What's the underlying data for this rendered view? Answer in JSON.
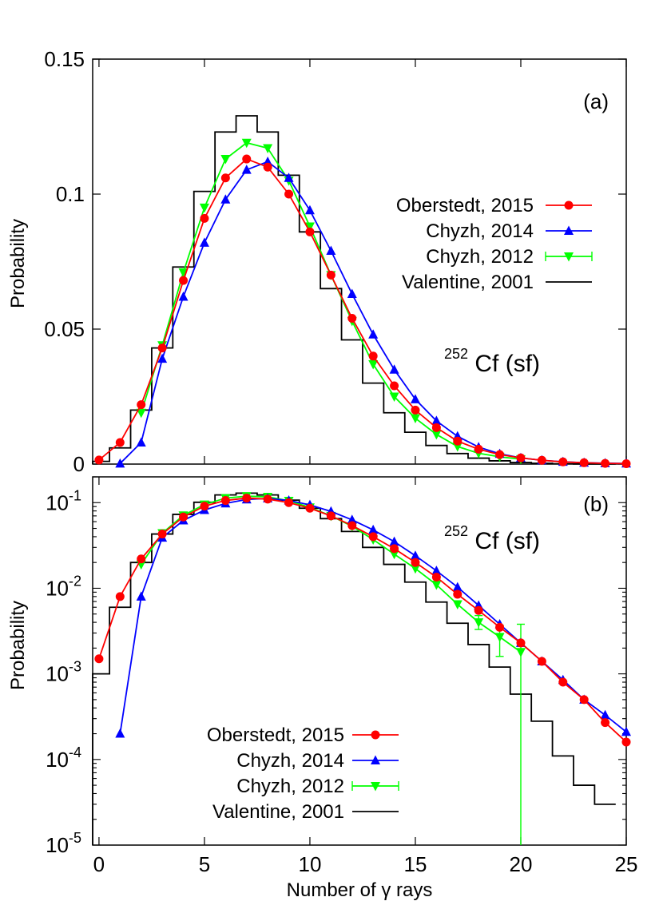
{
  "chart_data": [
    {
      "type": "line",
      "panel_label": "(a)",
      "annotation": {
        "isotope_mass": "252",
        "isotope_rest": "Cf (sf)"
      },
      "xlabel": "Number of γ rays",
      "ylabel": "Probability",
      "xlim": [
        -0.3,
        25
      ],
      "ylim": [
        0,
        0.15
      ],
      "yscale": "linear",
      "xticks": [
        0,
        5,
        10,
        15,
        20,
        25
      ],
      "yticks": [
        0,
        0.05,
        0.1,
        0.15
      ],
      "ytick_labels": [
        "0",
        "0.05",
        "0.1",
        "0.15"
      ],
      "legend_position": "right",
      "series": [
        {
          "name": "Oberstedt, 2015",
          "color": "#ff0000",
          "marker": "circle",
          "x": [
            0,
            1,
            2,
            3,
            4,
            5,
            6,
            7,
            8,
            9,
            10,
            11,
            12,
            13,
            14,
            15,
            16,
            17,
            18,
            19,
            20,
            21,
            22,
            23,
            24,
            25
          ],
          "y": [
            0.0015,
            0.008,
            0.022,
            0.043,
            0.068,
            0.091,
            0.106,
            0.113,
            0.11,
            0.1,
            0.086,
            0.07,
            0.054,
            0.04,
            0.029,
            0.02,
            0.0135,
            0.0085,
            0.0055,
            0.0035,
            0.0023,
            0.0014,
            0.0008,
            0.0005,
            0.00027,
            0.00016
          ]
        },
        {
          "name": "Chyzh, 2014",
          "color": "#0000ff",
          "marker": "triangle-up",
          "x": [
            1,
            2,
            3,
            4,
            5,
            6,
            7,
            8,
            9,
            10,
            11,
            12,
            13,
            14,
            15,
            16,
            17,
            18,
            19,
            20,
            21,
            22,
            23,
            24,
            25
          ],
          "y": [
            0.0002,
            0.008,
            0.039,
            0.062,
            0.082,
            0.098,
            0.109,
            0.112,
            0.106,
            0.094,
            0.079,
            0.063,
            0.048,
            0.035,
            0.024,
            0.016,
            0.0103,
            0.0063,
            0.0038,
            0.0023,
            0.0014,
            0.00085,
            0.0005,
            0.00033,
            0.00021
          ]
        },
        {
          "name": "Chyzh, 2012",
          "color": "#00ff00",
          "marker": "triangle-down",
          "x": [
            2,
            3,
            4,
            5,
            6,
            7,
            8,
            9,
            10,
            11,
            12,
            13,
            14,
            15,
            16,
            17,
            18,
            19,
            20
          ],
          "y": [
            0.019,
            0.044,
            0.071,
            0.095,
            0.113,
            0.119,
            0.117,
            0.105,
            0.088,
            0.07,
            0.053,
            0.037,
            0.025,
            0.017,
            0.011,
            0.0065,
            0.004,
            0.0027,
            0.0018
          ],
          "error_bars": [
            {
              "x": 18,
              "y": 0.004,
              "lo": 0.0033,
              "hi": 0.0048
            },
            {
              "x": 19,
              "y": 0.0027,
              "lo": 0.0016,
              "hi": 0.0037
            },
            {
              "x": 20,
              "y": 0.0018,
              "lo": 1e-06,
              "hi": 0.0038
            }
          ]
        },
        {
          "name": "Valentine, 2001",
          "color": "#000000",
          "marker": "step",
          "x": [
            0,
            1,
            2,
            3,
            4,
            5,
            6,
            7,
            8,
            9,
            10,
            11,
            12,
            13,
            14,
            15,
            16,
            17,
            18,
            19,
            20,
            21,
            22,
            23,
            24
          ],
          "y": [
            0.001,
            0.006,
            0.02,
            0.043,
            0.073,
            0.101,
            0.123,
            0.129,
            0.123,
            0.107,
            0.086,
            0.065,
            0.046,
            0.03,
            0.019,
            0.0118,
            0.0069,
            0.0039,
            0.0022,
            0.0012,
            0.00058,
            0.00028,
            0.00011,
            5e-05,
            3e-05
          ]
        }
      ]
    },
    {
      "type": "line",
      "panel_label": "(b)",
      "annotation": {
        "isotope_mass": "252",
        "isotope_rest": "Cf (sf)"
      },
      "xlabel": "Number of γ rays",
      "ylabel": "Probability",
      "xlim": [
        -0.3,
        25
      ],
      "ylim": [
        1e-05,
        0.2
      ],
      "yscale": "log",
      "xticks": [
        0,
        5,
        10,
        15,
        20,
        25
      ],
      "ytick_exponents": [
        -5,
        -4,
        -3,
        -2,
        -1
      ],
      "legend_position": "bottom-left",
      "series_ref": "same series as panel (a)"
    }
  ]
}
